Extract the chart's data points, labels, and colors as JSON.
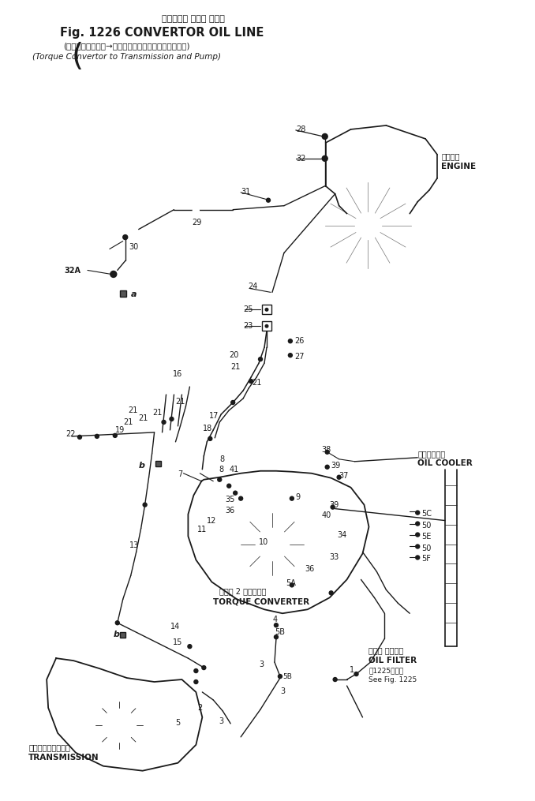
{
  "title_line1": "コンバータ オイル ライン",
  "title_line2": "Fig. 1226 CONVERTOR OIL LINE",
  "title_line3": "(トルクコンバータ→トランスミッションおよびポンプ)",
  "title_line4": "(Torque Convertor to Transmission and Pump)",
  "bg_color": "#ffffff",
  "lc": "#1a1a1a",
  "labels": {
    "engine_jp": "エンジン",
    "engine_en": "ENGINE",
    "oil_cooler_jp": "オイルクーラ",
    "oil_cooler_en": "OIL COOLER",
    "torque_jp": "トルク 2 コンバータ",
    "torque_en": "TORQUE CONVERTER",
    "transmission_jp": "トランスミッション",
    "transmission_en": "TRANSMISSION",
    "oil_filter_jp": "オイル フィルタ",
    "oil_filter_en": "OIL FILTER",
    "see_fig_jp": "参1225図参照",
    "see_fig_en": "See Fig. 1225"
  },
  "fig_width": 6.78,
  "fig_height": 10.15,
  "dpi": 100
}
